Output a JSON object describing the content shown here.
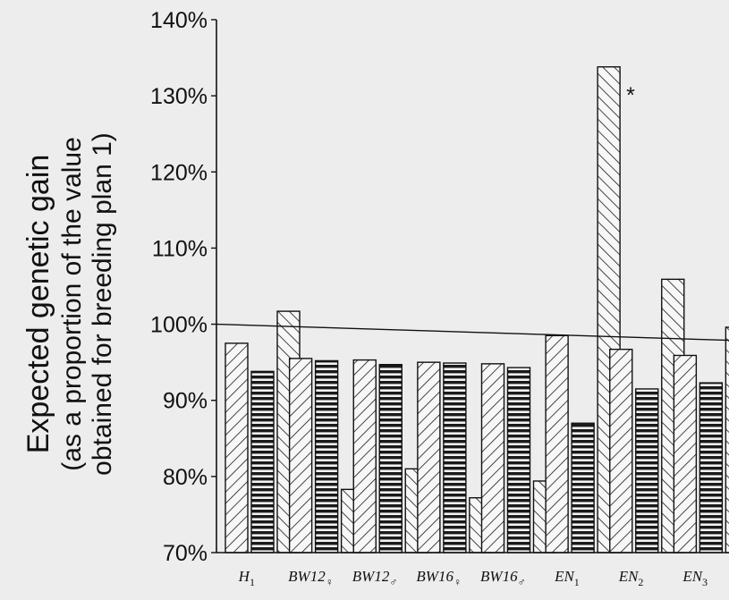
{
  "chart_data": {
    "type": "bar",
    "ylabel_lines": [
      "Expected genetic gain",
      "(as a proportion of the value",
      "obtained for breeding plan 1)"
    ],
    "xlabel": "",
    "ylim": [
      70,
      140
    ],
    "y_ticks": [
      "70%",
      "80%",
      "90%",
      "100%",
      "110%",
      "120%",
      "130%",
      "140%"
    ],
    "y_tick_values": [
      70,
      80,
      90,
      100,
      110,
      120,
      130,
      140
    ],
    "reference_line": 100,
    "categories": [
      {
        "base": "H",
        "sub": "1"
      },
      {
        "base": "BW12",
        "sub": "♀"
      },
      {
        "base": "BW12",
        "sub": "♂"
      },
      {
        "base": "BW16",
        "sub": "♀"
      },
      {
        "base": "BW16",
        "sub": "♂"
      },
      {
        "base": "EN",
        "sub": "1"
      },
      {
        "base": "EN",
        "sub": "2"
      },
      {
        "base": "EN",
        "sub": "3"
      }
    ],
    "series": [
      {
        "pattern": "forward-hatch",
        "values": [
          97.5,
          95.5,
          95.3,
          95.0,
          94.8,
          98.5,
          96.7,
          95.9
        ]
      },
      {
        "pattern": "horizontal-hatch",
        "values": [
          93.8,
          95.2,
          94.7,
          94.9,
          94.3,
          87.0,
          91.5,
          92.3
        ]
      },
      {
        "pattern": "backward-hatch",
        "values": [
          101.7,
          78.3,
          81.0,
          77.2,
          79.4,
          133.8,
          105.9,
          99.6
        ]
      }
    ],
    "annotations": [
      "*"
    ],
    "grid": false
  }
}
